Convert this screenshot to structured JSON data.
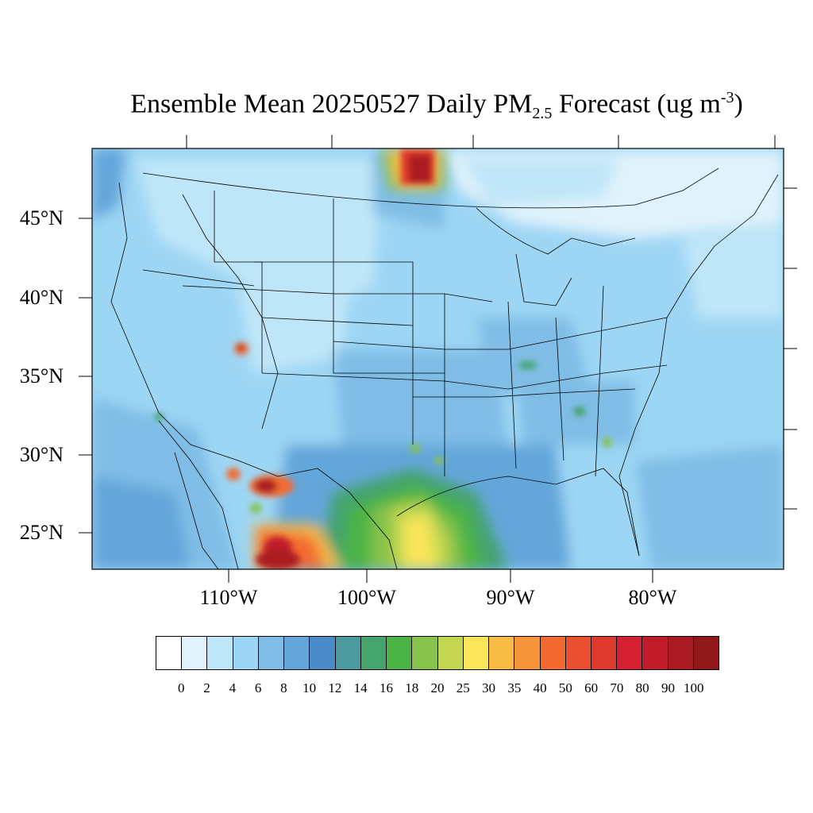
{
  "title": {
    "prefix": "Ensemble Mean 20250527 Daily PM",
    "sub": "2.5",
    "middle": " Forecast (ug m",
    "sup": "-3",
    "suffix": ")"
  },
  "lat_labels": [
    "45°N",
    "40°N",
    "35°N",
    "30°N",
    "25°N"
  ],
  "lon_labels": [
    "110°W",
    "100°W",
    "90°W",
    "80°W"
  ],
  "colorbar": {
    "colors": [
      "#ffffff",
      "#e0f3fc",
      "#bfe6f8",
      "#9dd6f4",
      "#7fbde6",
      "#64a6da",
      "#4a8bc8",
      "#4a9aa0",
      "#45a36e",
      "#4cb445",
      "#86c24c",
      "#c2d74f",
      "#f8e55a",
      "#f8bb45",
      "#f6943c",
      "#f26a30",
      "#ea5030",
      "#de3a2e",
      "#d42030",
      "#c01c2a",
      "#aa1a24",
      "#901818"
    ],
    "labels": [
      "0",
      "2",
      "4",
      "6",
      "8",
      "10",
      "12",
      "14",
      "16",
      "18",
      "20",
      "25",
      "30",
      "35",
      "40",
      "50",
      "60",
      "70",
      "80",
      "90",
      "100"
    ]
  }
}
